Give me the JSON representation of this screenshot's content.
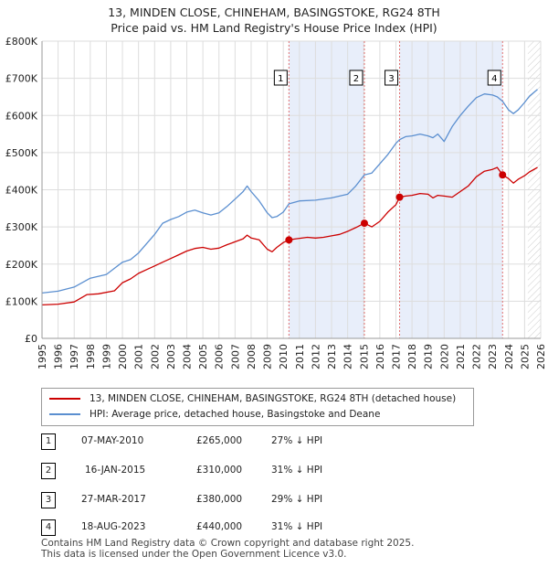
{
  "title_line1": "13, MINDEN CLOSE, CHINEHAM, BASINGSTOKE, RG24 8TH",
  "title_line2": "Price paid vs. HM Land Registry's House Price Index (HPI)",
  "colors": {
    "property": "#cc0000",
    "hpi": "#5b8fd0",
    "shade": "#e8eefa",
    "grid": "#dddddd"
  },
  "legend": {
    "property": "13, MINDEN CLOSE, CHINEHAM, BASINGSTOKE, RG24 8TH (detached house)",
    "hpi": "HPI: Average price, detached house, Basingstoke and Deane"
  },
  "sales": [
    {
      "num": "1",
      "date": "07-MAY-2010",
      "price": "£265,000",
      "delta": "27% ↓ HPI"
    },
    {
      "num": "2",
      "date": "16-JAN-2015",
      "price": "£310,000",
      "delta": "31% ↓ HPI"
    },
    {
      "num": "3",
      "date": "27-MAR-2017",
      "price": "£380,000",
      "delta": "29% ↓ HPI"
    },
    {
      "num": "4",
      "date": "18-AUG-2023",
      "price": "£440,000",
      "delta": "31% ↓ HPI"
    }
  ],
  "footer_line1": "Contains HM Land Registry data © Crown copyright and database right 2025.",
  "footer_line2": "This data is licensed under the Open Government Licence v3.0.",
  "chart_data": {
    "type": "line",
    "title": "13, MINDEN CLOSE, CHINEHAM, BASINGSTOKE, RG24 8TH — Price paid vs. HM Land Registry's House Price Index (HPI)",
    "xlabel": "",
    "ylabel": "",
    "xlim": [
      1995,
      2026
    ],
    "ylim": [
      0,
      800000
    ],
    "xticks": [
      "1995",
      "1996",
      "1997",
      "1998",
      "1999",
      "2000",
      "2001",
      "2002",
      "2003",
      "2004",
      "2005",
      "2006",
      "2007",
      "2008",
      "2009",
      "2010",
      "2011",
      "2012",
      "2013",
      "2014",
      "2015",
      "2016",
      "2017",
      "2018",
      "2019",
      "2020",
      "2021",
      "2022",
      "2023",
      "2024",
      "2025",
      "2026"
    ],
    "yticks": [
      {
        "value": 0,
        "label": "£0"
      },
      {
        "value": 100000,
        "label": "£100K"
      },
      {
        "value": 200000,
        "label": "£200K"
      },
      {
        "value": 300000,
        "label": "£300K"
      },
      {
        "value": 400000,
        "label": "£400K"
      },
      {
        "value": 500000,
        "label": "£500K"
      },
      {
        "value": 600000,
        "label": "£600K"
      },
      {
        "value": 700000,
        "label": "£700K"
      },
      {
        "value": 800000,
        "label": "£800K"
      }
    ],
    "grid": true,
    "shaded_ranges": [
      [
        2010.35,
        2015.04
      ],
      [
        2017.23,
        2023.63
      ]
    ],
    "projection_from": 2025.2,
    "series": [
      {
        "name": "13, MINDEN CLOSE, CHINEHAM, BASINGSTOKE, RG24 8TH (detached house)",
        "x": [
          1995.0,
          1996.0,
          1997.0,
          1997.8,
          1998.5,
          1999.5,
          2000.0,
          2000.5,
          2001.0,
          2001.5,
          2002.0,
          2002.5,
          2003.0,
          2003.5,
          2004.0,
          2004.5,
          2005.0,
          2005.5,
          2006.0,
          2006.5,
          2007.0,
          2007.5,
          2007.75,
          2008.0,
          2008.5,
          2009.0,
          2009.3,
          2009.6,
          2010.0,
          2010.35,
          2010.8,
          2011.5,
          2012.0,
          2012.5,
          2013.0,
          2013.5,
          2014.0,
          2014.5,
          2015.04,
          2015.5,
          2016.0,
          2016.5,
          2017.0,
          2017.23,
          2017.6,
          2018.0,
          2018.5,
          2019.0,
          2019.3,
          2019.6,
          2020.0,
          2020.5,
          2021.0,
          2021.5,
          2022.0,
          2022.5,
          2023.0,
          2023.3,
          2023.63,
          2024.0,
          2024.3,
          2024.6,
          2025.0,
          2025.3,
          2025.8
        ],
        "values": [
          90000,
          92000,
          98000,
          118000,
          120000,
          128000,
          150000,
          160000,
          175000,
          185000,
          195000,
          205000,
          215000,
          225000,
          235000,
          242000,
          245000,
          240000,
          243000,
          252000,
          260000,
          268000,
          278000,
          270000,
          265000,
          240000,
          233000,
          245000,
          258000,
          265000,
          268000,
          272000,
          270000,
          272000,
          276000,
          280000,
          288000,
          298000,
          310000,
          300000,
          315000,
          340000,
          360000,
          380000,
          383000,
          385000,
          390000,
          388000,
          378000,
          385000,
          383000,
          380000,
          395000,
          410000,
          435000,
          450000,
          455000,
          460000,
          440000,
          430000,
          418000,
          428000,
          438000,
          448000,
          460000
        ]
      },
      {
        "name": "HPI: Average price, detached house, Basingstoke and Deane",
        "x": [
          1995.0,
          1996.0,
          1997.0,
          1998.0,
          1999.0,
          2000.0,
          2000.5,
          2001.0,
          2001.5,
          2002.0,
          2002.5,
          2003.0,
          2003.5,
          2004.0,
          2004.5,
          2005.0,
          2005.5,
          2006.0,
          2006.5,
          2007.0,
          2007.5,
          2007.75,
          2008.0,
          2008.5,
          2009.0,
          2009.3,
          2009.6,
          2010.0,
          2010.35,
          2011.0,
          2012.0,
          2013.0,
          2014.0,
          2014.5,
          2015.04,
          2015.5,
          2016.0,
          2016.5,
          2017.0,
          2017.23,
          2017.6,
          2018.0,
          2018.5,
          2019.0,
          2019.3,
          2019.6,
          2020.0,
          2020.5,
          2021.0,
          2021.5,
          2022.0,
          2022.5,
          2023.0,
          2023.3,
          2023.63,
          2024.0,
          2024.3,
          2024.6,
          2025.0,
          2025.3,
          2025.8
        ],
        "values": [
          122000,
          127000,
          138000,
          162000,
          172000,
          205000,
          212000,
          230000,
          255000,
          280000,
          310000,
          320000,
          328000,
          340000,
          345000,
          338000,
          332000,
          338000,
          355000,
          375000,
          395000,
          410000,
          395000,
          370000,
          338000,
          325000,
          328000,
          340000,
          362000,
          370000,
          372000,
          378000,
          388000,
          410000,
          440000,
          445000,
          470000,
          495000,
          525000,
          535000,
          543000,
          545000,
          550000,
          545000,
          540000,
          550000,
          530000,
          570000,
          600000,
          625000,
          648000,
          658000,
          655000,
          650000,
          638000,
          615000,
          605000,
          615000,
          635000,
          652000,
          670000
        ]
      }
    ],
    "sale_points": [
      {
        "label": "1",
        "x": 2010.35,
        "y": 265000
      },
      {
        "label": "2",
        "x": 2015.04,
        "y": 310000
      },
      {
        "label": "3",
        "x": 2017.23,
        "y": 380000
      },
      {
        "label": "4",
        "x": 2023.63,
        "y": 440000
      }
    ]
  }
}
